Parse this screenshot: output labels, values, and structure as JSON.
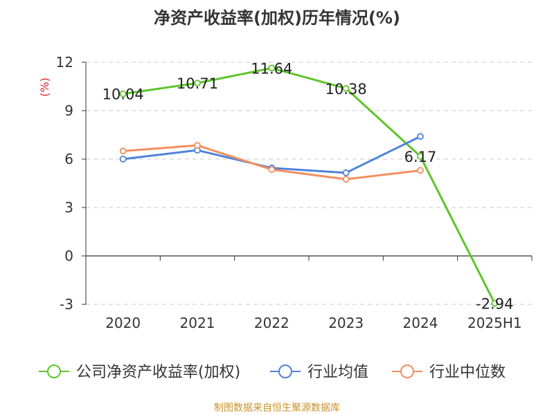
{
  "chart_data": {
    "type": "line",
    "title": "净资产收益率(加权)历年情况(%)",
    "ylabel": "(%)",
    "xlabel": "",
    "categories": [
      "2020",
      "2021",
      "2022",
      "2023",
      "2024",
      "2025H1"
    ],
    "y_ticks": [
      12,
      9,
      6,
      3,
      0,
      -3
    ],
    "ylim": [
      -3,
      12
    ],
    "grid": true,
    "legend_position": "bottom",
    "series": [
      {
        "name": "公司净资产收益率(加权)",
        "color": "#5ec42b",
        "values": [
          10.04,
          10.71,
          11.64,
          10.38,
          6.17,
          -2.94
        ],
        "labels": [
          "10.04",
          "10.71",
          "11.64",
          "10.38",
          "6.17",
          "-2.94"
        ]
      },
      {
        "name": "行业均值",
        "color": "#4f82dc",
        "values": [
          6.0,
          6.55,
          5.45,
          5.15,
          7.4,
          null
        ]
      },
      {
        "name": "行业中位数",
        "color": "#f48e5c",
        "values": [
          6.5,
          6.85,
          5.35,
          4.75,
          5.3,
          null
        ]
      }
    ]
  },
  "source_text": "制图数据来自恒生聚源数据库"
}
